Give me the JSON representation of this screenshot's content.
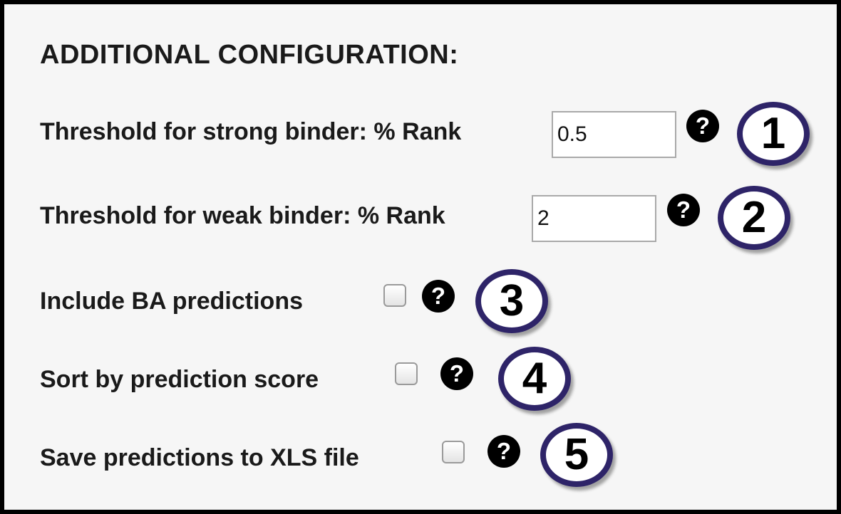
{
  "section": {
    "title": "ADDITIONAL CONFIGURATION:"
  },
  "fields": {
    "strong_binder": {
      "label": "Threshold for strong binder: % Rank",
      "value": "0.5",
      "help": "?",
      "badge": "1"
    },
    "weak_binder": {
      "label": "Threshold for weak binder: % Rank",
      "value": "2",
      "help": "?",
      "badge": "2"
    },
    "ba_predictions": {
      "label": "Include BA predictions",
      "checked": false,
      "help": "?",
      "badge": "3"
    },
    "sort_score": {
      "label": "Sort by prediction score",
      "checked": false,
      "help": "?",
      "badge": "4"
    },
    "save_xls": {
      "label": "Save predictions to XLS file",
      "checked": false,
      "help": "?",
      "badge": "5"
    }
  },
  "colors": {
    "panel_background": "#f6f6f6",
    "badge_border": "#2e2468",
    "help_icon": "#000000"
  },
  "icons": {
    "help": "question-circle-icon"
  }
}
